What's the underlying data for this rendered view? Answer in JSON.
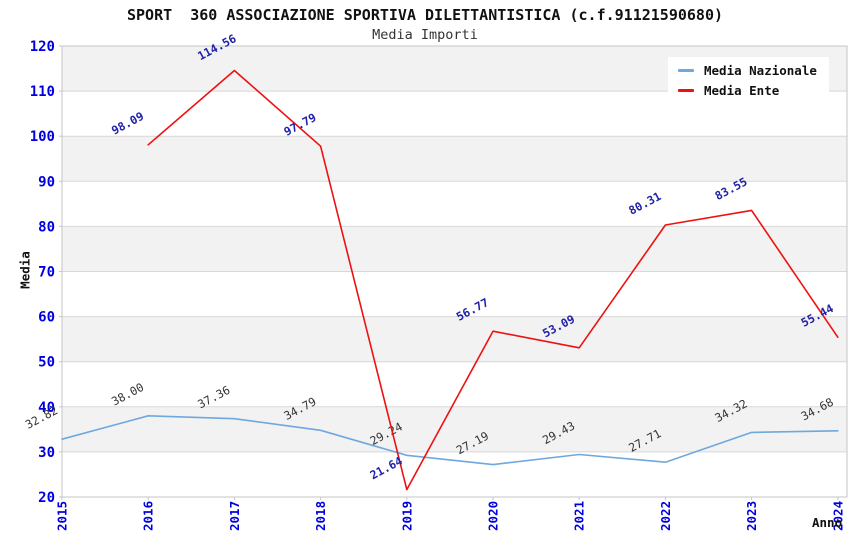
{
  "chart_data": {
    "type": "line",
    "title": "SPORT  360 ASSOCIAZIONE SPORTIVA DILETTANTISTICA (c.f.91121590680)",
    "subtitle": "Media Importi",
    "xlabel": "Anno",
    "ylabel": "Media",
    "x": [
      "2015",
      "2016",
      "2017",
      "2018",
      "2019",
      "2020",
      "2021",
      "2022",
      "2023",
      "2024"
    ],
    "series": [
      {
        "name": "Media Nazionale",
        "color": "#6fa8dd",
        "label_color": "#333333",
        "label_weight": "normal",
        "values": [
          32.82,
          38.0,
          37.36,
          34.79,
          29.24,
          27.19,
          29.43,
          27.71,
          34.32,
          34.68
        ]
      },
      {
        "name": "Media Ente",
        "color": "#ee1111",
        "label_color": "#2222aa",
        "label_weight": "bold",
        "values": [
          null,
          98.09,
          114.56,
          97.79,
          21.64,
          56.77,
          53.09,
          80.31,
          83.55,
          55.44
        ]
      }
    ],
    "ylim": [
      20,
      120
    ],
    "ytick_step": 10,
    "grid": true,
    "legend_position": "top-right",
    "value_label_decimals": 2
  },
  "colors": {
    "tick": "#0000dd",
    "band": "#f2f2f2",
    "grid": "#d8d8d8",
    "border": "#c6c6c6",
    "background": "#ffffff"
  }
}
